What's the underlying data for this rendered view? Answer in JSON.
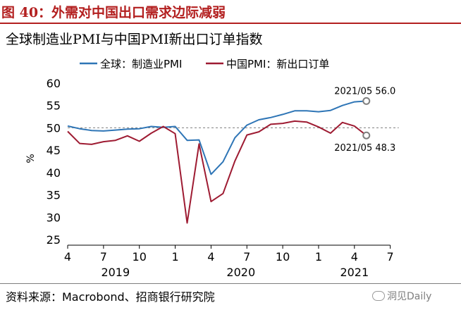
{
  "figure_title": "图 40：外需对中国出口需求边际减弱",
  "source": "资料来源：Macrobond、招商银行研究院",
  "watermark": "洞见Daily",
  "colors": {
    "title": "#b31f1f",
    "series_blue": "#2e75b6",
    "series_red": "#9e1b32",
    "reference": "#7f7f7f"
  },
  "chart_data": {
    "type": "line",
    "title": "全球制造业PMI与中国PMI新出口订单指数",
    "ylabel": "%",
    "ylim": [
      25,
      60
    ],
    "yticks": [
      25,
      30,
      35,
      40,
      45,
      50,
      55,
      60
    ],
    "x_tick_labels": [
      "4",
      "7",
      "10",
      "1",
      "4",
      "7",
      "10",
      "1",
      "4",
      "7"
    ],
    "year_labels": [
      "2019",
      "2020",
      "2021"
    ],
    "legend_position": "top",
    "reference_line": 50,
    "series": [
      {
        "name": "全球：制造业PMI",
        "x": [
          "2019/04",
          "2019/05",
          "2019/06",
          "2019/07",
          "2019/08",
          "2019/09",
          "2019/10",
          "2019/11",
          "2019/12",
          "2020/01",
          "2020/02",
          "2020/03",
          "2020/04",
          "2020/05",
          "2020/06",
          "2020/07",
          "2020/08",
          "2020/09",
          "2020/10",
          "2020/11",
          "2020/12",
          "2021/01",
          "2021/02",
          "2021/03",
          "2021/04",
          "2021/05"
        ],
        "values": [
          50.4,
          49.8,
          49.4,
          49.3,
          49.5,
          49.7,
          49.8,
          50.3,
          50.1,
          50.3,
          47.2,
          47.3,
          39.6,
          42.4,
          47.8,
          50.6,
          51.8,
          52.3,
          53.0,
          53.8,
          53.8,
          53.6,
          53.9,
          55.0,
          55.8,
          56.0
        ],
        "end_label": "2021/05 56.0"
      },
      {
        "name": "中国PMI：新出口订单",
        "x": [
          "2019/04",
          "2019/05",
          "2019/06",
          "2019/07",
          "2019/08",
          "2019/09",
          "2019/10",
          "2019/11",
          "2019/12",
          "2020/01",
          "2020/02",
          "2020/03",
          "2020/04",
          "2020/05",
          "2020/06",
          "2020/07",
          "2020/08",
          "2020/09",
          "2020/10",
          "2020/11",
          "2020/12",
          "2021/01",
          "2021/02",
          "2021/03",
          "2021/04",
          "2021/05"
        ],
        "values": [
          49.2,
          46.5,
          46.3,
          46.9,
          47.2,
          48.2,
          47.0,
          48.8,
          50.3,
          48.7,
          28.7,
          46.4,
          33.5,
          35.3,
          42.6,
          48.4,
          49.1,
          50.8,
          51.0,
          51.5,
          51.3,
          50.2,
          48.8,
          51.2,
          50.4,
          48.3
        ],
        "end_label": "2021/05 48.3"
      }
    ]
  }
}
